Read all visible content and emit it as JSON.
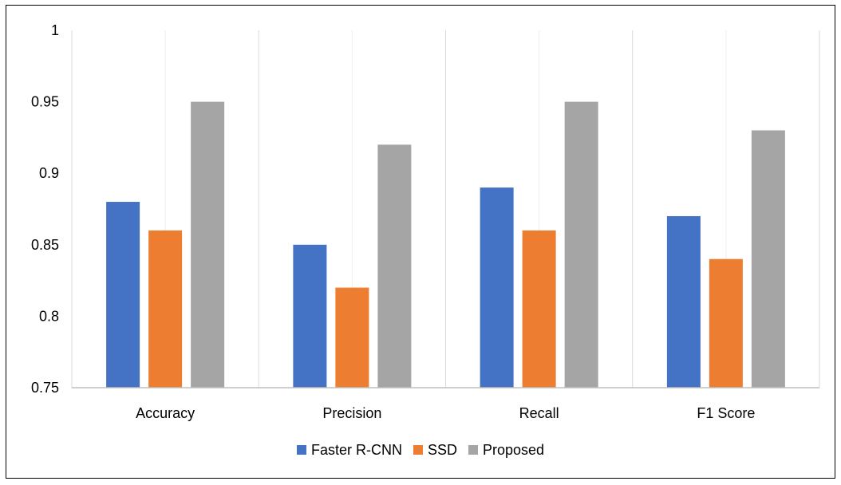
{
  "chart_data": {
    "type": "bar",
    "categories": [
      "Accuracy",
      "Precision",
      "Recall",
      "F1 Score"
    ],
    "series": [
      {
        "name": "Faster R-CNN",
        "values": [
          0.88,
          0.85,
          0.89,
          0.87
        ],
        "color": "#4472C4"
      },
      {
        "name": "SSD",
        "values": [
          0.86,
          0.82,
          0.86,
          0.84
        ],
        "color": "#ED7D31"
      },
      {
        "name": "Proposed",
        "values": [
          0.95,
          0.92,
          0.95,
          0.93
        ],
        "color": "#A5A5A5"
      }
    ],
    "yticks": [
      "0.75",
      "0.8",
      "0.85",
      "0.9",
      "0.95",
      "1"
    ],
    "ylim": [
      0.75,
      1
    ],
    "grid": "vertical category separators",
    "legend_position": "bottom"
  }
}
